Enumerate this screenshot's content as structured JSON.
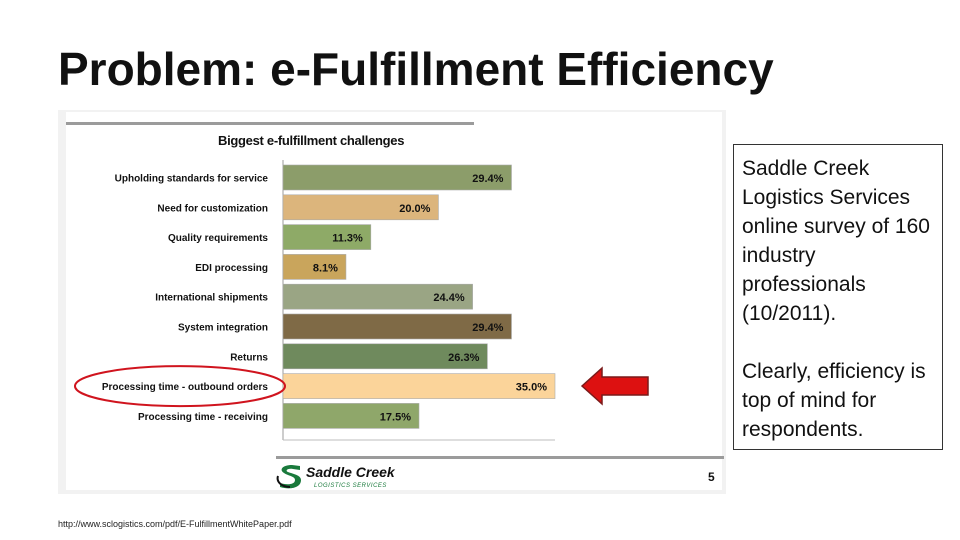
{
  "slide": {
    "title": "Problem: e-Fulfillment Efficiency",
    "page_number": "5",
    "source_url": "http://www.sclogistics.com/pdf/E-FulfillmentWhitePaper.pdf"
  },
  "note": {
    "paragraph1": "Saddle Creek Logistics Services online survey of 160 industry professionals (10/2011).",
    "paragraph2": "Clearly, efficiency is top of mind for respondents."
  },
  "logo": {
    "name": "Saddle Creek",
    "tagline": "LOGISTICS SERVICES"
  },
  "colors": {
    "arrow": "#dd1111",
    "highlight_ellipse": "#d0141e",
    "panel_background": "#f2f2f2"
  },
  "highlight": {
    "category": "Processing time - outbound orders"
  },
  "chart_data": {
    "type": "bar",
    "orientation": "horizontal",
    "title": "Biggest e-fulfillment challenges",
    "categories": [
      "Upholding standards for service",
      "Need for customization",
      "Quality requirements",
      "EDI processing",
      "International shipments",
      "System integration",
      "Returns",
      "Processing time - outbound orders",
      "Processing time - receiving"
    ],
    "values": [
      29.4,
      20.0,
      11.3,
      8.1,
      24.4,
      29.4,
      26.3,
      35.0,
      17.5
    ],
    "labels": [
      "29.4%",
      "20.0%",
      "11.3%",
      "8.1%",
      "24.4%",
      "29.4%",
      "26.3%",
      "35.0%",
      "17.5%"
    ],
    "bar_colors": [
      "#8c9d6a",
      "#dcb57c",
      "#8eaa67",
      "#c9a55c",
      "#9aa584",
      "#7f6a46",
      "#6f8a5d",
      "#fbd49a",
      "#8fa76a"
    ],
    "xlim": [
      0,
      35
    ],
    "unit": "%",
    "grid": false,
    "legend": "none"
  }
}
